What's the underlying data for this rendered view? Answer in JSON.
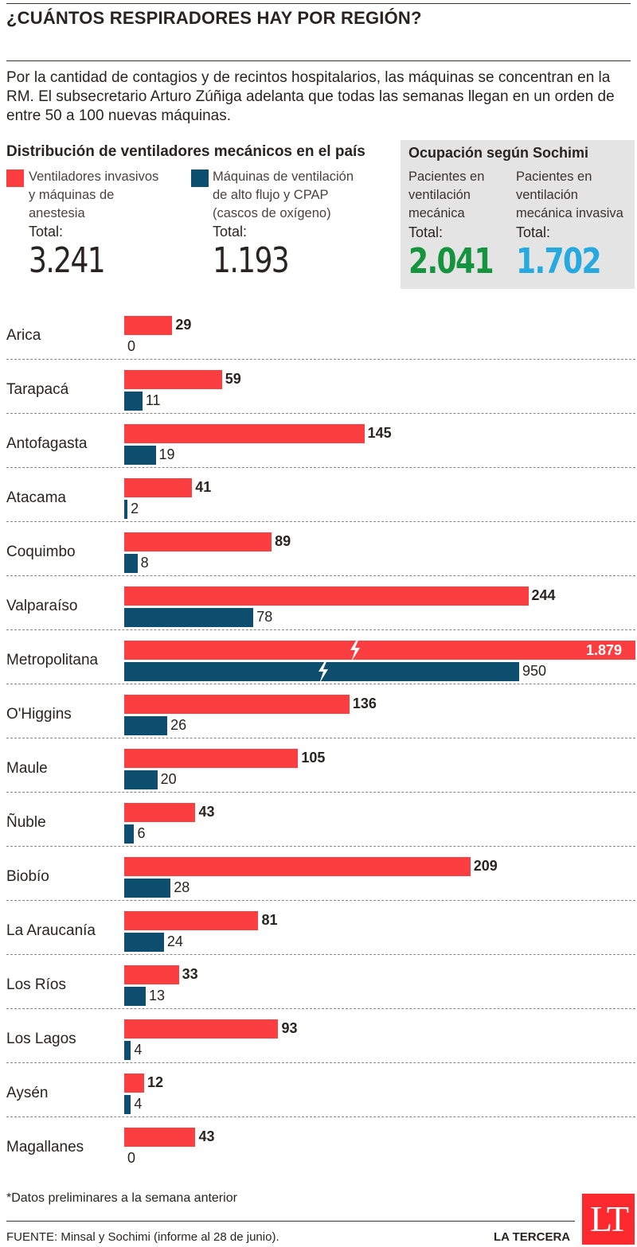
{
  "header": {
    "title": "¿CUÁNTOS RESPIRADORES HAY POR REGIÓN?",
    "intro": "Por la cantidad de contagios y de recintos hospitalarios, las máquinas se concentran en la RM. El subsecretario Arturo Zúñiga adelanta que todas las semanas llegan en un orden de entre 50 a 100 nuevas máquinas."
  },
  "distribution": {
    "title": "Distribución de ventiladores mecánicos en el país",
    "invasive": {
      "label_lines": [
        "Ventiladores invasivos",
        "y máquinas de",
        "anestesia"
      ],
      "total_label": "Total:",
      "total_value": "3.241",
      "color": "#fc3e40"
    },
    "highflow": {
      "label_lines": [
        "Máquinas de ventilación",
        "de alto flujo y CPAP",
        "(cascos de oxígeno)"
      ],
      "total_label": "Total:",
      "total_value": "1.193",
      "color": "#0d4d6e"
    }
  },
  "occupancy": {
    "title": "Ocupación según Sochimi",
    "mechanical": {
      "label_lines": [
        "Pacientes en",
        "ventilación",
        "mecánica"
      ],
      "total_label": "Total:",
      "total_value": "2.041",
      "color": "#16933e"
    },
    "invasive": {
      "label_lines": [
        "Pacientes en",
        "ventilación",
        "mecánica invasiva"
      ],
      "total_label": "Total:",
      "total_value": "1.702",
      "color": "#25a9df"
    }
  },
  "chart_data": {
    "type": "bar",
    "orientation": "horizontal",
    "categories": [
      "Arica",
      "Tarapacá",
      "Antofagasta",
      "Atacama",
      "Coquimbo",
      "Valparaíso",
      "Metropolitana",
      "O'Higgins",
      "Maule",
      "Ñuble",
      "Biobío",
      "La Araucanía",
      "Los Ríos",
      "Los Lagos",
      "Aysén",
      "Magallanes"
    ],
    "series": [
      {
        "name": "Ventiladores invasivos y máquinas de anestesia",
        "color": "#fc3e40",
        "values": [
          29,
          59,
          145,
          41,
          89,
          244,
          1879,
          136,
          105,
          43,
          209,
          81,
          33,
          93,
          12,
          43
        ],
        "labels": [
          "29",
          "59",
          "145",
          "41",
          "89",
          "244",
          "1.879",
          "136",
          "105",
          "43",
          "209",
          "81",
          "33",
          "93",
          "12",
          "43"
        ]
      },
      {
        "name": "Máquinas de ventilación de alto flujo y CPAP (cascos de oxígeno)",
        "color": "#0d4d6e",
        "values": [
          0,
          11,
          19,
          2,
          8,
          78,
          950,
          26,
          20,
          6,
          28,
          24,
          13,
          4,
          4,
          0
        ],
        "labels": [
          "0",
          "11",
          "19",
          "2",
          "8",
          "78",
          "950",
          "26",
          "20",
          "6",
          "28",
          "24",
          "13",
          "4",
          "4",
          "0"
        ]
      }
    ],
    "axis_break": {
      "category": "Metropolitana",
      "note": "bars truncated with break marks"
    },
    "grid": false,
    "legend": "top"
  },
  "footer": {
    "note": "*Datos preliminares a la semana anterior",
    "source": "FUENTE: Minsal y Sochimi (informe al 28 de junio).",
    "brand": "LA TERCERA",
    "logo": "LT"
  }
}
